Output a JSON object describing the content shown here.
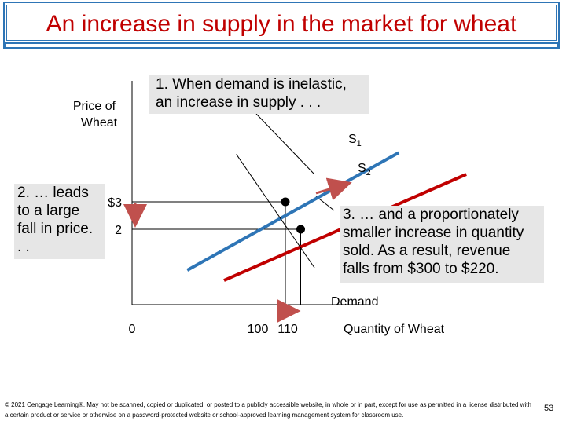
{
  "title": "An increase in supply in the market for wheat",
  "callouts": {
    "box1": [
      "1. When demand is inelastic,",
      "an increase in supply . . ."
    ],
    "box2": [
      "2. … leads",
      "to a large",
      "fall in price.",
      ". ."
    ],
    "box3": [
      "3. … and a proportionately",
      "smaller increase in quantity",
      "sold. As a result, revenue",
      "falls from $300 to $220."
    ]
  },
  "footer": "© 2021 Cengage Learning®. May not be scanned, copied or duplicated, or posted to a publicly accessible website, in whole or in part, except for use as permitted in a license distributed with a certain product or service or otherwise on a password-protected website or school-approved learning management system for classroom use.",
  "page_number": "53",
  "colors": {
    "title": "#c00000",
    "frame": "#2e75b6",
    "s1": "#2e75b6",
    "s2": "#c00000",
    "demand": "#000000",
    "arrow": "#c0504d"
  },
  "chart_data": {
    "type": "line",
    "ylabel": "Price of Wheat",
    "xlabel": "Quantity of Wheat",
    "x_ticks": [
      {
        "value": 0,
        "label": "0"
      },
      {
        "value": 100,
        "label": "100"
      },
      {
        "value": 110,
        "label": "110"
      }
    ],
    "y_ticks": [
      {
        "value": 3,
        "label": "$3"
      },
      {
        "value": 2,
        "label": "2"
      }
    ],
    "series": [
      {
        "name": "S1",
        "points": [
          [
            36,
            0.51
          ],
          [
            174,
            4.79
          ]
        ]
      },
      {
        "name": "S2",
        "points": [
          [
            60,
            0.14
          ],
          [
            218,
            4.0
          ]
        ]
      },
      {
        "name": "Demand",
        "points": [
          [
            68,
            4.73
          ],
          [
            119,
            0.6
          ]
        ]
      }
    ],
    "equilibria": [
      {
        "x": 100,
        "y": 3
      },
      {
        "x": 110,
        "y": 2
      }
    ],
    "arrows": [
      {
        "from": "S1",
        "to": "S2"
      },
      {
        "axis": "price",
        "from": 3,
        "to": 2
      },
      {
        "axis": "quantity",
        "from": 100,
        "to": 110
      }
    ],
    "grid": false
  }
}
